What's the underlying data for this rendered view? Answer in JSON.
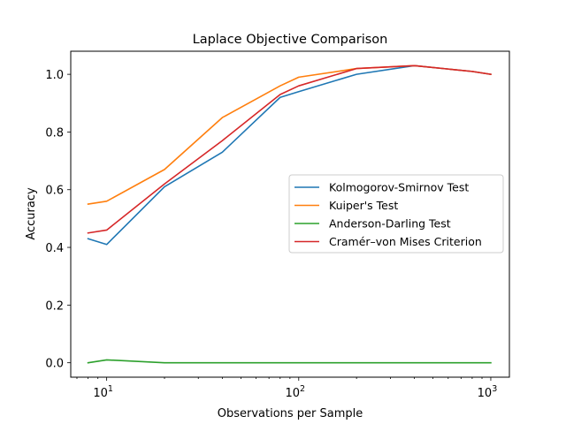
{
  "chart_data": {
    "type": "line",
    "title": "Laplace Objective Comparison",
    "xlabel": "Observations per Sample",
    "ylabel": "Accuracy",
    "xscale": "log",
    "xlim": [
      6.5,
      1250
    ],
    "ylim": [
      -0.05,
      1.08
    ],
    "grid": false,
    "legend_position": "center-right",
    "x": [
      8,
      10,
      20,
      40,
      80,
      100,
      200,
      400,
      800,
      1000
    ],
    "x_ticks": [
      {
        "value": 10,
        "base": "10",
        "exp": "1"
      },
      {
        "value": 100,
        "base": "10",
        "exp": "2"
      },
      {
        "value": 1000,
        "base": "10",
        "exp": "3"
      }
    ],
    "x_minor_ticks": [
      7,
      8,
      9,
      20,
      30,
      40,
      50,
      60,
      70,
      80,
      90,
      200,
      300,
      400,
      500,
      600,
      700,
      800,
      900
    ],
    "y_ticks": [
      {
        "value": 0.0,
        "label": "0.0"
      },
      {
        "value": 0.2,
        "label": "0.2"
      },
      {
        "value": 0.4,
        "label": "0.4"
      },
      {
        "value": 0.6,
        "label": "0.6"
      },
      {
        "value": 0.8,
        "label": "0.8"
      },
      {
        "value": 1.0,
        "label": "1.0"
      }
    ],
    "series": [
      {
        "name": "Kolmogorov-Smirnov Test",
        "color": "#1f77b4",
        "values": [
          0.43,
          0.41,
          0.61,
          0.73,
          0.92,
          0.94,
          1.0,
          1.03,
          1.01,
          1.0
        ]
      },
      {
        "name": "Kuiper's Test",
        "color": "#ff7f0e",
        "values": [
          0.55,
          0.56,
          0.67,
          0.85,
          0.96,
          0.99,
          1.02,
          1.03,
          1.01,
          1.0
        ]
      },
      {
        "name": "Anderson-Darling Test",
        "color": "#2ca02c",
        "values": [
          0.0,
          0.01,
          0.0,
          0.0,
          0.0,
          0.0,
          0.0,
          0.0,
          0.0,
          0.0
        ]
      },
      {
        "name": "Cramér–von Mises Criterion",
        "color": "#d62728",
        "values": [
          0.45,
          0.46,
          0.62,
          0.77,
          0.93,
          0.96,
          1.02,
          1.03,
          1.01,
          1.0
        ]
      }
    ]
  }
}
